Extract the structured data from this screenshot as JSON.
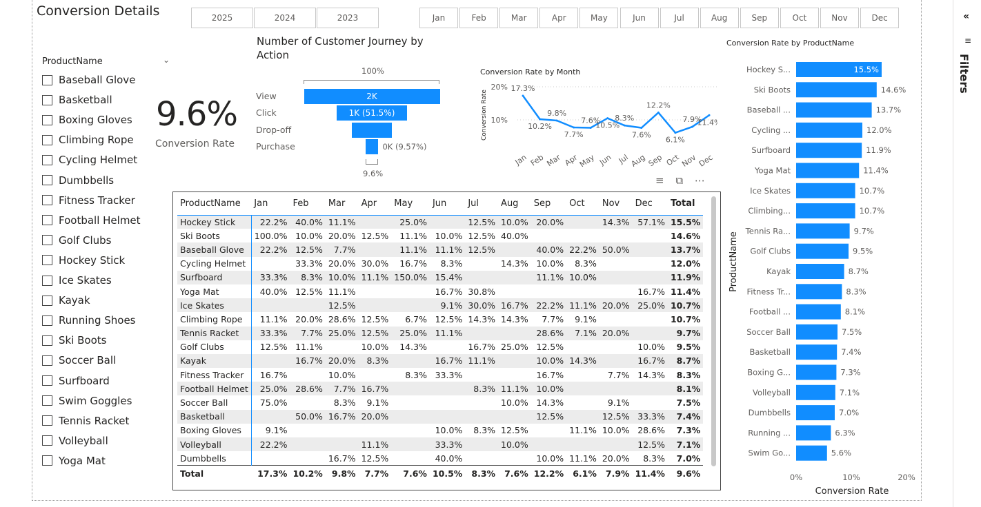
{
  "page_title": "Conversion Details",
  "years": [
    "2025",
    "2024",
    "2023"
  ],
  "months": [
    "Jan",
    "Feb",
    "Mar",
    "Apr",
    "May",
    "Jun",
    "Jul",
    "Aug",
    "Sep",
    "Oct",
    "Nov",
    "Dec"
  ],
  "slicer": {
    "title": "ProductName",
    "items": [
      "Baseball Glove",
      "Basketball",
      "Boxing Gloves",
      "Climbing Rope",
      "Cycling Helmet",
      "Dumbbells",
      "Fitness Tracker",
      "Football Helmet",
      "Golf Clubs",
      "Hockey Stick",
      "Ice Skates",
      "Kayak",
      "Running Shoes",
      "Ski Boots",
      "Soccer Ball",
      "Surfboard",
      "Swim Goggles",
      "Tennis Racket",
      "Volleyball",
      "Yoga Mat"
    ]
  },
  "kpi": {
    "value": "9.6%",
    "label": "Conversion Rate"
  },
  "funnel": {
    "title": "Number of Customer Journey by Action",
    "top_label": "100%",
    "bottom_label": "9.6%",
    "stages": [
      {
        "name": "View",
        "label": "2K",
        "fraction": 1.0
      },
      {
        "name": "Click",
        "label": "1K (51.5%)",
        "fraction": 0.515
      },
      {
        "name": "Drop-off",
        "label": "",
        "fraction": 0.29
      },
      {
        "name": "Purchase",
        "label": "0K (9.57%)",
        "fraction": 0.096
      }
    ]
  },
  "line_chart": {
    "title": "Conversion Rate by Month",
    "ylabel": "Conversion Rate",
    "yticks": [
      "20%",
      "10%"
    ],
    "chart_data": {
      "type": "line",
      "x": [
        "Jan",
        "Feb",
        "Mar",
        "Apr",
        "May",
        "Jun",
        "Jul",
        "Aug",
        "Sep",
        "Oct",
        "Nov",
        "Dec"
      ],
      "values": [
        17.3,
        10.2,
        9.8,
        7.7,
        7.6,
        10.5,
        8.3,
        7.6,
        12.2,
        6.1,
        7.9,
        11.4
      ],
      "labels": [
        "17.3%",
        "10.2%",
        "9.8%",
        "7.7%",
        "7.6%",
        "10.5%",
        "8.3%",
        "7.6%",
        "12.2%",
        "6.1%",
        "7.9%",
        "11.4%"
      ],
      "ylim": [
        0,
        20
      ]
    }
  },
  "bar_chart": {
    "title": "Conversion Rate by ProductName",
    "xlabel": "Conversion Rate",
    "ylabel": "ProductName",
    "xticks": [
      "0%",
      "10%",
      "20%"
    ],
    "chart_data": {
      "type": "bar",
      "categories": [
        "Hockey S...",
        "Ski Boots",
        "Baseball ...",
        "Cycling ...",
        "Surfboard",
        "Yoga Mat",
        "Ice Skates",
        "Climbing...",
        "Tennis Ra...",
        "Golf Clubs",
        "Kayak",
        "Fitness Tr...",
        "Football ...",
        "Soccer Ball",
        "Basketball",
        "Boxing G...",
        "Volleyball",
        "Dumbbells",
        "Running ...",
        "Swim Go..."
      ],
      "values": [
        15.5,
        14.6,
        13.7,
        12.0,
        11.9,
        11.4,
        10.7,
        10.7,
        9.7,
        9.5,
        8.7,
        8.3,
        8.1,
        7.5,
        7.4,
        7.3,
        7.1,
        7.0,
        6.3,
        5.6
      ],
      "labels": [
        "15.5%",
        "14.6%",
        "13.7%",
        "12.0%",
        "11.9%",
        "11.4%",
        "10.7%",
        "10.7%",
        "9.7%",
        "9.5%",
        "8.7%",
        "8.3%",
        "8.1%",
        "7.5%",
        "7.4%",
        "7.3%",
        "7.1%",
        "7.0%",
        "6.3%",
        "5.6%"
      ],
      "xlim": [
        0,
        20
      ]
    }
  },
  "matrix": {
    "headers": [
      "ProductName",
      "Jan",
      "Feb",
      "Mar",
      "Apr",
      "May",
      "Jun",
      "Jul",
      "Aug",
      "Sep",
      "Oct",
      "Nov",
      "Dec",
      "Total"
    ],
    "rows": [
      [
        "Hockey Stick",
        "22.2%",
        "40.0%",
        "11.1%",
        "",
        "25.0%",
        "",
        "12.5%",
        "10.0%",
        "20.0%",
        "",
        "14.3%",
        "57.1%",
        "15.5%"
      ],
      [
        "Ski Boots",
        "100.0%",
        "10.0%",
        "20.0%",
        "12.5%",
        "11.1%",
        "10.0%",
        "12.5%",
        "40.0%",
        "",
        "",
        "",
        "",
        "14.6%"
      ],
      [
        "Baseball Glove",
        "22.2%",
        "12.5%",
        "7.7%",
        "",
        "11.1%",
        "11.1%",
        "12.5%",
        "",
        "40.0%",
        "22.2%",
        "50.0%",
        "",
        "13.7%"
      ],
      [
        "Cycling Helmet",
        "",
        "33.3%",
        "20.0%",
        "30.0%",
        "16.7%",
        "8.3%",
        "",
        "14.3%",
        "10.0%",
        "8.3%",
        "",
        "",
        "12.0%"
      ],
      [
        "Surfboard",
        "33.3%",
        "8.3%",
        "10.0%",
        "11.1%",
        "150.0%",
        "15.4%",
        "",
        "",
        "11.1%",
        "10.0%",
        "",
        "",
        "11.9%"
      ],
      [
        "Yoga Mat",
        "40.0%",
        "12.5%",
        "11.1%",
        "",
        "",
        "16.7%",
        "30.8%",
        "",
        "",
        "",
        "",
        "16.7%",
        "11.4%"
      ],
      [
        "Ice Skates",
        "",
        "",
        "12.5%",
        "",
        "",
        "9.1%",
        "30.0%",
        "16.7%",
        "22.2%",
        "11.1%",
        "20.0%",
        "25.0%",
        "10.7%"
      ],
      [
        "Climbing Rope",
        "11.1%",
        "20.0%",
        "28.6%",
        "12.5%",
        "6.7%",
        "12.5%",
        "14.3%",
        "14.3%",
        "7.7%",
        "9.1%",
        "",
        "",
        "10.7%"
      ],
      [
        "Tennis Racket",
        "33.3%",
        "7.7%",
        "25.0%",
        "12.5%",
        "25.0%",
        "11.1%",
        "",
        "",
        "28.6%",
        "7.1%",
        "20.0%",
        "",
        "9.7%"
      ],
      [
        "Golf Clubs",
        "12.5%",
        "11.1%",
        "",
        "10.0%",
        "14.3%",
        "",
        "16.7%",
        "25.0%",
        "12.5%",
        "",
        "",
        "10.0%",
        "9.5%"
      ],
      [
        "Kayak",
        "",
        "16.7%",
        "20.0%",
        "8.3%",
        "",
        "16.7%",
        "11.1%",
        "",
        "10.0%",
        "14.3%",
        "",
        "16.7%",
        "8.7%"
      ],
      [
        "Fitness Tracker",
        "16.7%",
        "",
        "10.0%",
        "",
        "8.3%",
        "33.3%",
        "",
        "",
        "16.7%",
        "",
        "7.7%",
        "14.3%",
        "8.3%"
      ],
      [
        "Football Helmet",
        "25.0%",
        "28.6%",
        "7.7%",
        "16.7%",
        "",
        "",
        "8.3%",
        "11.1%",
        "10.0%",
        "",
        "",
        "",
        "8.1%"
      ],
      [
        "Soccer Ball",
        "75.0%",
        "",
        "8.3%",
        "9.1%",
        "",
        "",
        "",
        "10.0%",
        "14.3%",
        "",
        "9.1%",
        "",
        "7.5%"
      ],
      [
        "Basketball",
        "",
        "50.0%",
        "16.7%",
        "20.0%",
        "",
        "",
        "",
        "",
        "12.5%",
        "",
        "12.5%",
        "33.3%",
        "7.4%"
      ],
      [
        "Boxing Gloves",
        "9.1%",
        "",
        "",
        "",
        "",
        "10.0%",
        "8.3%",
        "12.5%",
        "",
        "11.1%",
        "10.0%",
        "28.6%",
        "7.3%"
      ],
      [
        "Volleyball",
        "22.2%",
        "",
        "",
        "11.1%",
        "",
        "33.3%",
        "",
        "10.0%",
        "",
        "",
        "",
        "12.5%",
        "7.1%"
      ],
      [
        "Dumbbells",
        "",
        "",
        "16.7%",
        "12.5%",
        "",
        "40.0%",
        "",
        "",
        "10.0%",
        "11.1%",
        "20.0%",
        "8.3%",
        "7.0%"
      ]
    ],
    "total": [
      "Total",
      "17.3%",
      "10.2%",
      "9.8%",
      "7.7%",
      "7.6%",
      "10.5%",
      "8.3%",
      "7.6%",
      "12.2%",
      "6.1%",
      "7.9%",
      "11.4%",
      "9.6%"
    ]
  },
  "filters": {
    "label": "Filters"
  },
  "colors": {
    "accent": "#118DFF"
  }
}
